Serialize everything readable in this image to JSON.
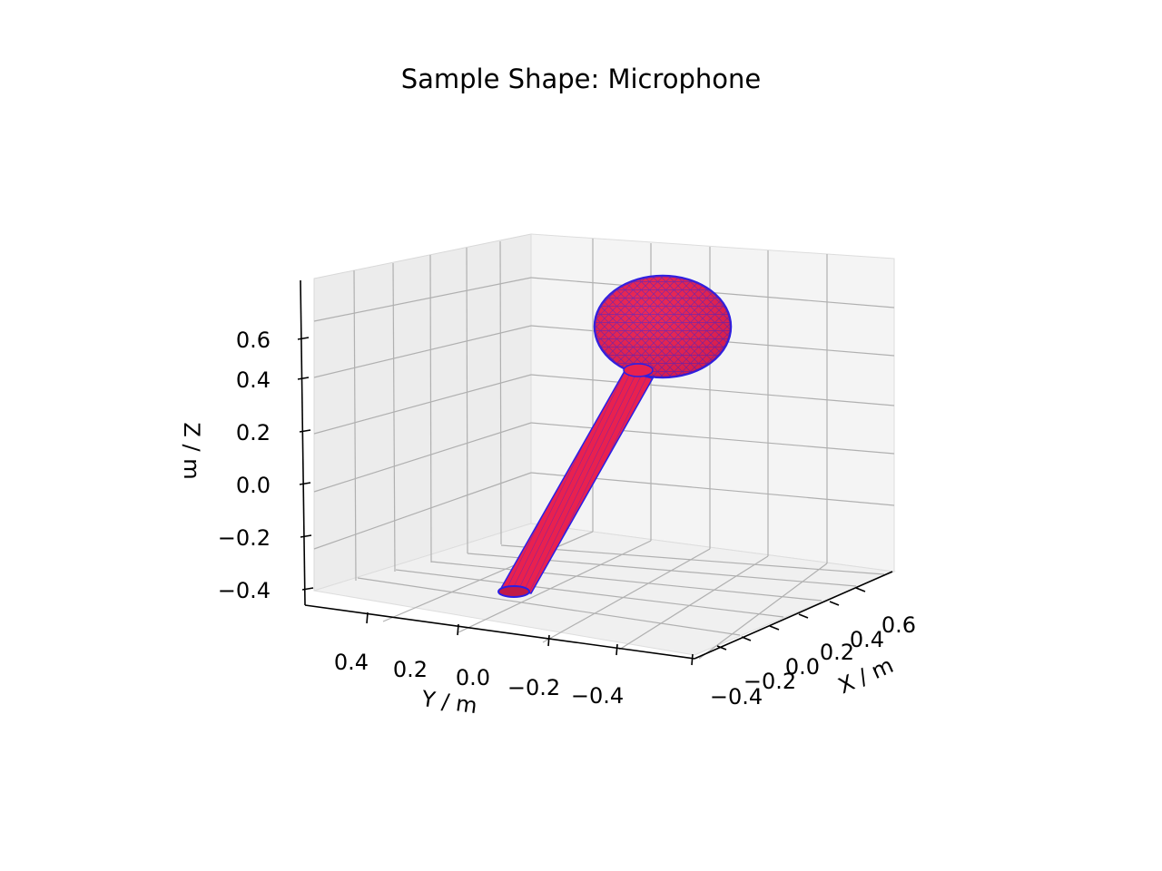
{
  "chart_data": {
    "type": "surface3d",
    "title": "Sample Shape: Microphone",
    "xlabel": "X / m",
    "ylabel": "Y / m",
    "zlabel": "Z / m",
    "x_ticks": [
      "−0.4",
      "−0.2",
      "0.0",
      "0.2",
      "0.4",
      "0.6"
    ],
    "y_ticks": [
      "0.4",
      "0.2",
      "0.0",
      "−0.2",
      "−0.4"
    ],
    "z_ticks": [
      "0.6",
      "0.4",
      "0.2",
      "0.0",
      "−0.2",
      "−0.4"
    ],
    "grid": true,
    "face_color": "#e8214f",
    "edge_color": "#2a1ee6",
    "pane_color": "#f2f2f2",
    "grid_color": "#b0b0b0",
    "shape": {
      "parts": [
        "spherical head",
        "cylindrical handle"
      ]
    }
  }
}
